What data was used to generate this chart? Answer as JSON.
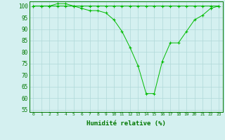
{
  "line1": [
    100,
    100,
    100,
    101,
    101,
    100,
    100,
    100,
    100,
    100,
    100,
    100,
    100,
    100,
    100,
    100,
    100,
    100,
    100,
    100,
    100,
    100,
    100,
    100
  ],
  "line2": [
    100,
    100,
    100,
    100,
    100,
    100,
    99,
    98,
    98,
    97,
    94,
    89,
    82,
    74,
    62,
    62,
    76,
    84,
    84,
    89,
    94,
    96,
    99,
    100
  ],
  "x": [
    0,
    1,
    2,
    3,
    4,
    5,
    6,
    7,
    8,
    9,
    10,
    11,
    12,
    13,
    14,
    15,
    16,
    17,
    18,
    19,
    20,
    21,
    22,
    23
  ],
  "xlabel": "Humidité relative (%)",
  "ylim": [
    54,
    102
  ],
  "yticks": [
    55,
    60,
    65,
    70,
    75,
    80,
    85,
    90,
    95,
    100
  ],
  "line_color": "#00bb00",
  "marker": "+",
  "bg_color": "#d4f0f0",
  "grid_color": "#b0d8d8",
  "tick_color": "#007700",
  "label_color": "#007700",
  "spine_color": "#007700"
}
